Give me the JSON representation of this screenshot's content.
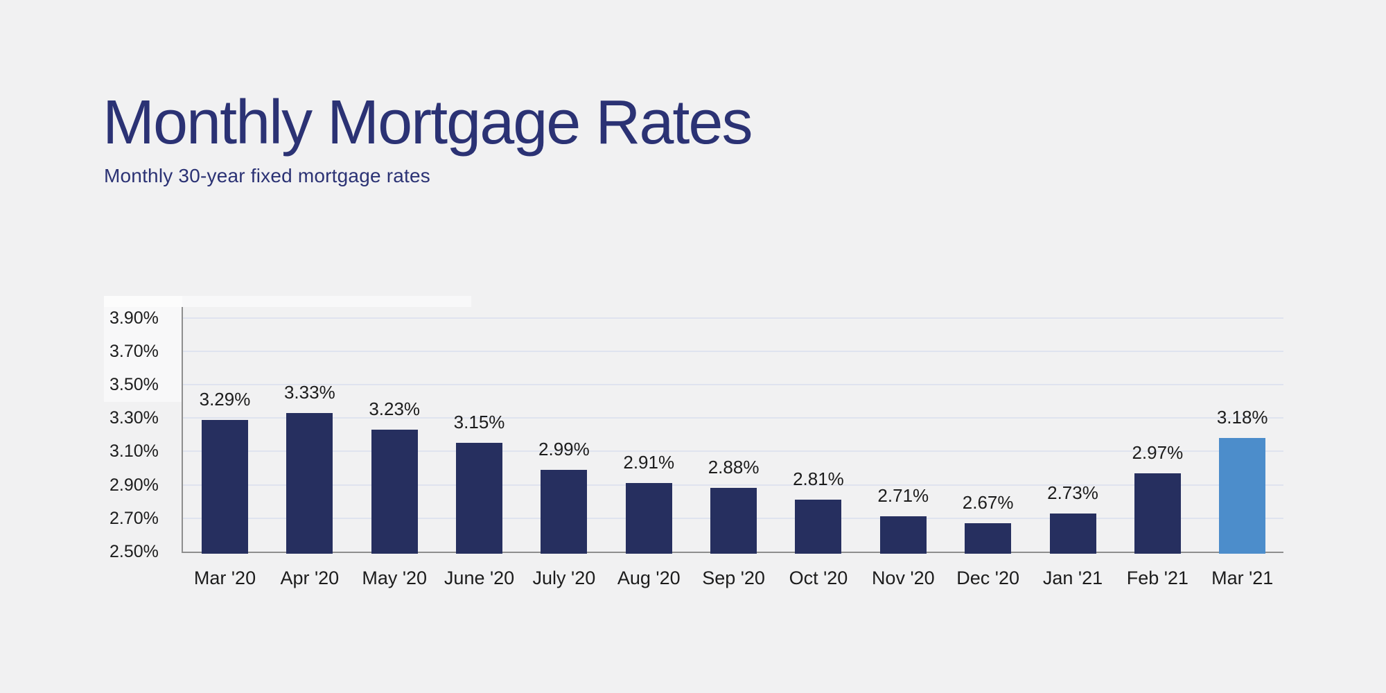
{
  "chart_data": {
    "type": "bar",
    "title": "Monthly Mortgage Rates",
    "subtitle": "Monthly 30-year fixed mortgage rates",
    "categories": [
      "Mar '20",
      "Apr '20",
      "May '20",
      "June '20",
      "July '20",
      "Aug '20",
      "Sep '20",
      "Oct '20",
      "Nov '20",
      "Dec '20",
      "Jan '21",
      "Feb '21",
      "Mar '21"
    ],
    "values": [
      3.29,
      3.33,
      3.23,
      3.15,
      2.99,
      2.91,
      2.88,
      2.81,
      2.71,
      2.67,
      2.73,
      2.97,
      3.18
    ],
    "value_labels": [
      "3.29%",
      "3.33%",
      "3.23%",
      "3.15%",
      "2.99%",
      "2.91%",
      "2.88%",
      "2.81%",
      "2.71%",
      "2.67%",
      "2.73%",
      "2.97%",
      "3.18%"
    ],
    "y_tick_values": [
      3.9,
      3.7,
      3.5,
      3.3,
      3.1,
      2.9,
      2.7,
      2.5
    ],
    "y_tick_labels": [
      "3.90%",
      "3.70%",
      "3.50%",
      "3.30%",
      "3.10%",
      "2.90%",
      "2.70%",
      "2.50%"
    ],
    "ylim": [
      2.5,
      3.9
    ],
    "grid": true,
    "legend": "none",
    "highlight_index": 12,
    "colors": {
      "bar": "#262F5F",
      "highlight_bar": "#4C8DCB",
      "grid": "#DFE3EF",
      "axis": "#8E8E8E",
      "text": "#1C1C1C",
      "title": "#2B3274",
      "background": "#F1F1F2"
    }
  }
}
